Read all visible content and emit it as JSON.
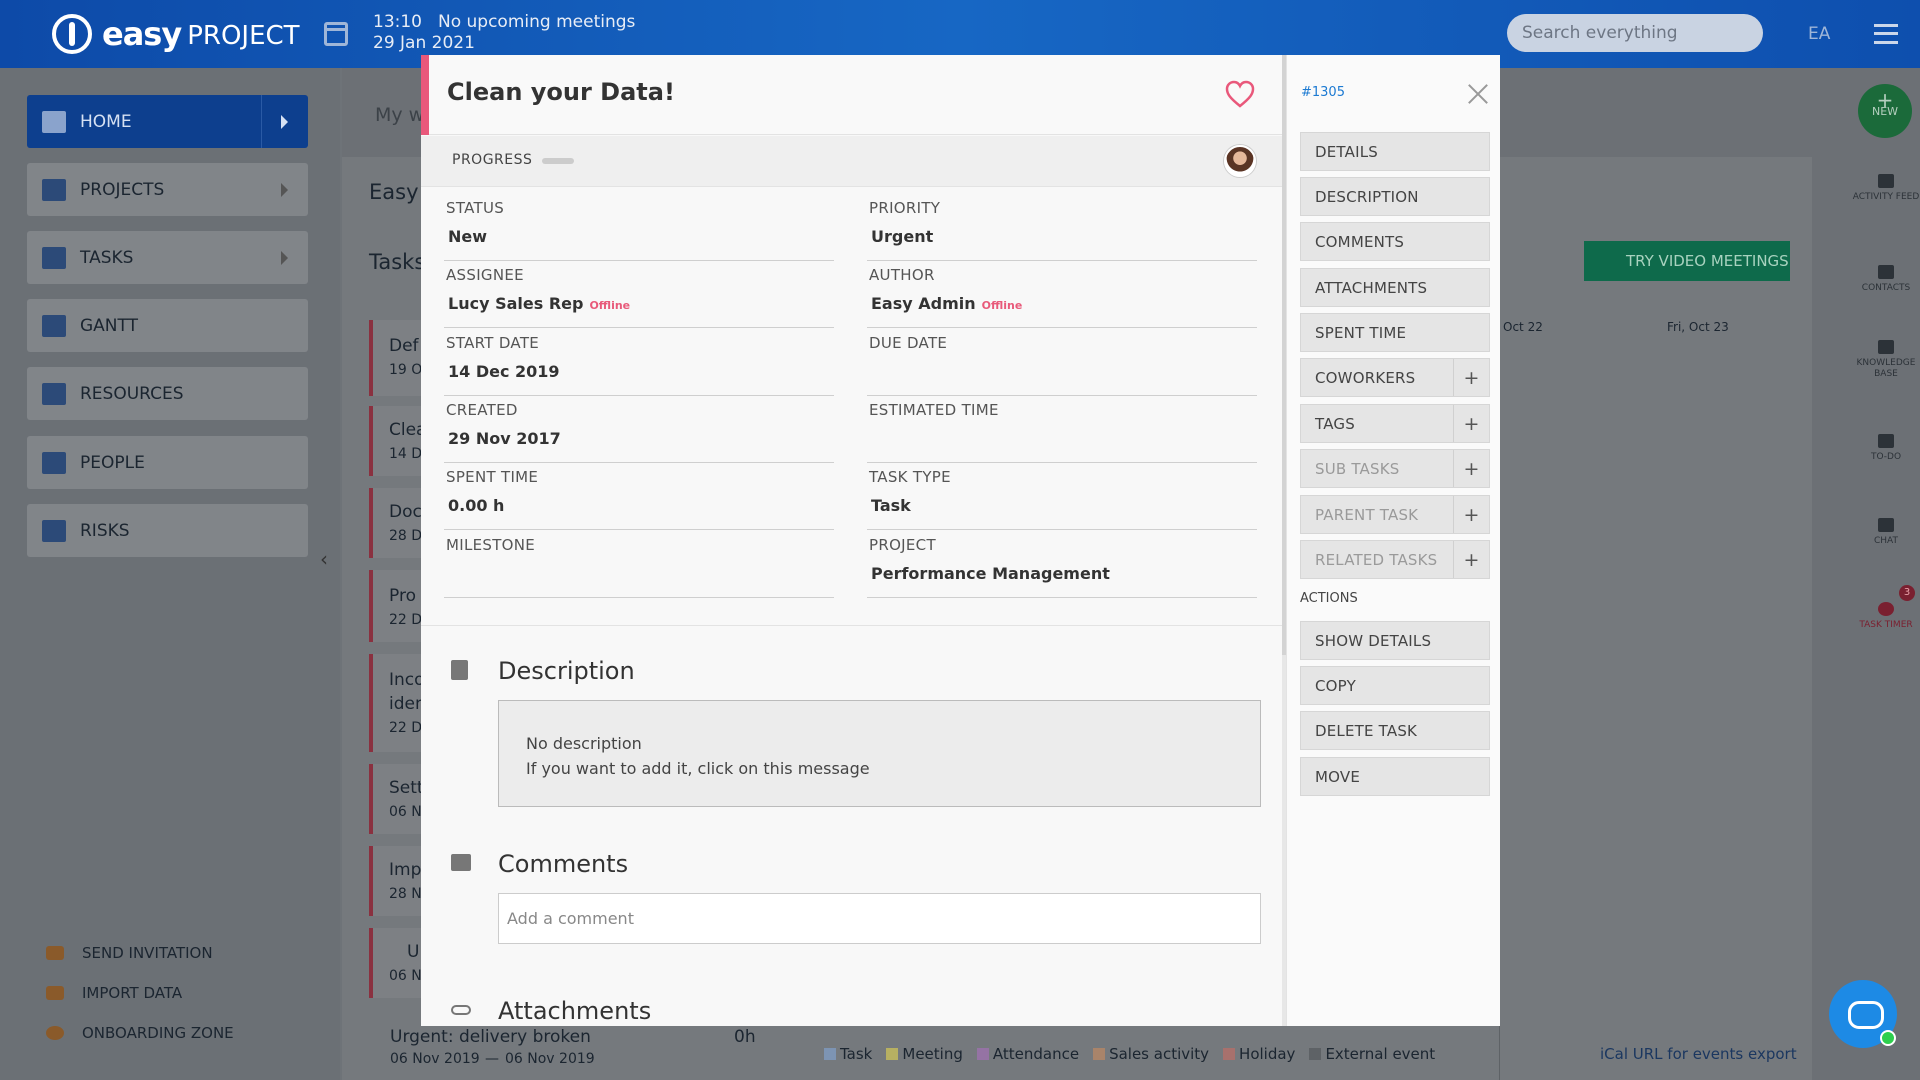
{
  "app": {
    "logo_main": "easy",
    "logo_sub": "PROJECT",
    "time": "13:10",
    "date": "29 Jan 2021",
    "meetings": "No upcoming meetings",
    "search_placeholder": "Search everything",
    "user_initials": "EA"
  },
  "sidebar": {
    "items": [
      {
        "label": "HOME"
      },
      {
        "label": "PROJECTS"
      },
      {
        "label": "TASKS"
      },
      {
        "label": "GANTT"
      },
      {
        "label": "RESOURCES"
      },
      {
        "label": "PEOPLE"
      },
      {
        "label": "RISKS"
      }
    ],
    "bottom": [
      {
        "label": "SEND INVITATION"
      },
      {
        "label": "IMPORT DATA"
      },
      {
        "label": "ONBOARDING ZONE"
      }
    ]
  },
  "background": {
    "breadcrumb": "My w",
    "page_title": "Easy S",
    "tasks_heading": "Tasks",
    "try_button": "TRY VIDEO MEETINGS",
    "cal_cols": [
      "Oct 22",
      "Fri, Oct 23"
    ],
    "rows": [
      {
        "t1": "Def",
        "t2": "19 O"
      },
      {
        "t1": "Clea",
        "t2": "14 D"
      },
      {
        "t1": "Doc",
        "t2": "28 D"
      },
      {
        "t1": "Pro",
        "t2": "22 D"
      },
      {
        "t1": "Inco",
        "t2": "iden",
        "t3": "22 D"
      },
      {
        "t1": "Sett",
        "t2": "06 N"
      },
      {
        "t1": "Imp",
        "t2": "28 N"
      },
      {
        "t1": "U",
        "t2": "06 N"
      }
    ],
    "last_task": {
      "title": "Urgent: delivery broken",
      "hours": "0h",
      "start": "06 Nov 2019",
      "dash": "—",
      "end": "06 Nov 2019"
    },
    "legend": [
      "Task",
      "Meeting",
      "Attendance",
      "Sales activity",
      "Holiday",
      "External event"
    ],
    "legend_colors": [
      "#7d94b3",
      "#b7b062",
      "#9573a4",
      "#a9846a",
      "#a8716d",
      "#5e6266"
    ],
    "ical": "iCal URL for events export",
    "rail": [
      "ACTIVITY FEED",
      "CONTACTS",
      "KNOWLEDGE BASE",
      "TO-DO",
      "CHAT",
      "TASK TIMER"
    ],
    "rail_new": "NEW",
    "timer_badge": "3"
  },
  "task": {
    "title": "Clean your Data!",
    "id": "#1305",
    "progress_label": "PROGRESS",
    "fields": {
      "status": {
        "label": "STATUS",
        "value": "New"
      },
      "priority": {
        "label": "PRIORITY",
        "value": "Urgent"
      },
      "assignee": {
        "label": "ASSIGNEE",
        "value": "Lucy Sales Rep",
        "presence": "Offline"
      },
      "author": {
        "label": "AUTHOR",
        "value": "Easy Admin",
        "presence": "Offline"
      },
      "start_date": {
        "label": "START DATE",
        "value": "14 Dec 2019"
      },
      "due_date": {
        "label": "DUE DATE",
        "value": ""
      },
      "created": {
        "label": "CREATED",
        "value": "29 Nov 2017"
      },
      "estimated_time": {
        "label": "ESTIMATED TIME",
        "value": ""
      },
      "spent_time": {
        "label": "SPENT TIME",
        "value": "0.00 h"
      },
      "task_type": {
        "label": "TASK TYPE",
        "value": "Task"
      },
      "milestone": {
        "label": "MILESTONE",
        "value": ""
      },
      "project": {
        "label": "PROJECT",
        "value": "Performance Management"
      }
    },
    "description": {
      "heading": "Description",
      "line1": "No description",
      "line2": "If you want to add it, click on this message"
    },
    "comments": {
      "heading": "Comments",
      "placeholder": "Add a comment"
    },
    "attachments": {
      "heading": "Attachments"
    }
  },
  "panel": {
    "nav": [
      "DETAILS",
      "DESCRIPTION",
      "COMMENTS",
      "ATTACHMENTS",
      "SPENT TIME",
      "COWORKERS",
      "TAGS",
      "SUB TASKS",
      "PARENT TASK",
      "RELATED TASKS"
    ],
    "plus": "+",
    "actions_heading": "ACTIONS",
    "actions": [
      "SHOW DETAILS",
      "COPY",
      "DELETE TASK",
      "MOVE"
    ]
  }
}
